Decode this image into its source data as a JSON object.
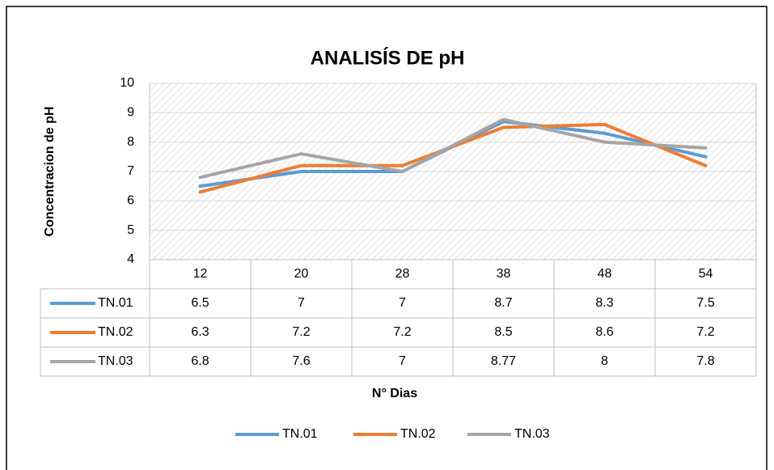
{
  "chart_data": {
    "type": "line",
    "title": "ANALISÍS DE pH",
    "x_label": "N° Dias",
    "y_label": "Concentracion de pH",
    "categories": [
      "12",
      "20",
      "28",
      "38",
      "48",
      "54"
    ],
    "series": [
      {
        "name": "TN.01",
        "color": "#5b9bd5",
        "values": [
          6.5,
          7,
          7,
          8.7,
          8.3,
          7.5
        ]
      },
      {
        "name": "TN.02",
        "color": "#ed7d31",
        "values": [
          6.3,
          7.2,
          7.2,
          8.5,
          8.6,
          7.2
        ]
      },
      {
        "name": "TN.03",
        "color": "#a5a5a5",
        "values": [
          6.8,
          7.6,
          7,
          8.77,
          8,
          7.8
        ]
      }
    ],
    "ylim": [
      4,
      10
    ],
    "yticks": [
      4,
      5,
      6,
      7,
      8,
      9,
      10
    ],
    "grid": true,
    "data_table": true,
    "legend": "bottom"
  }
}
